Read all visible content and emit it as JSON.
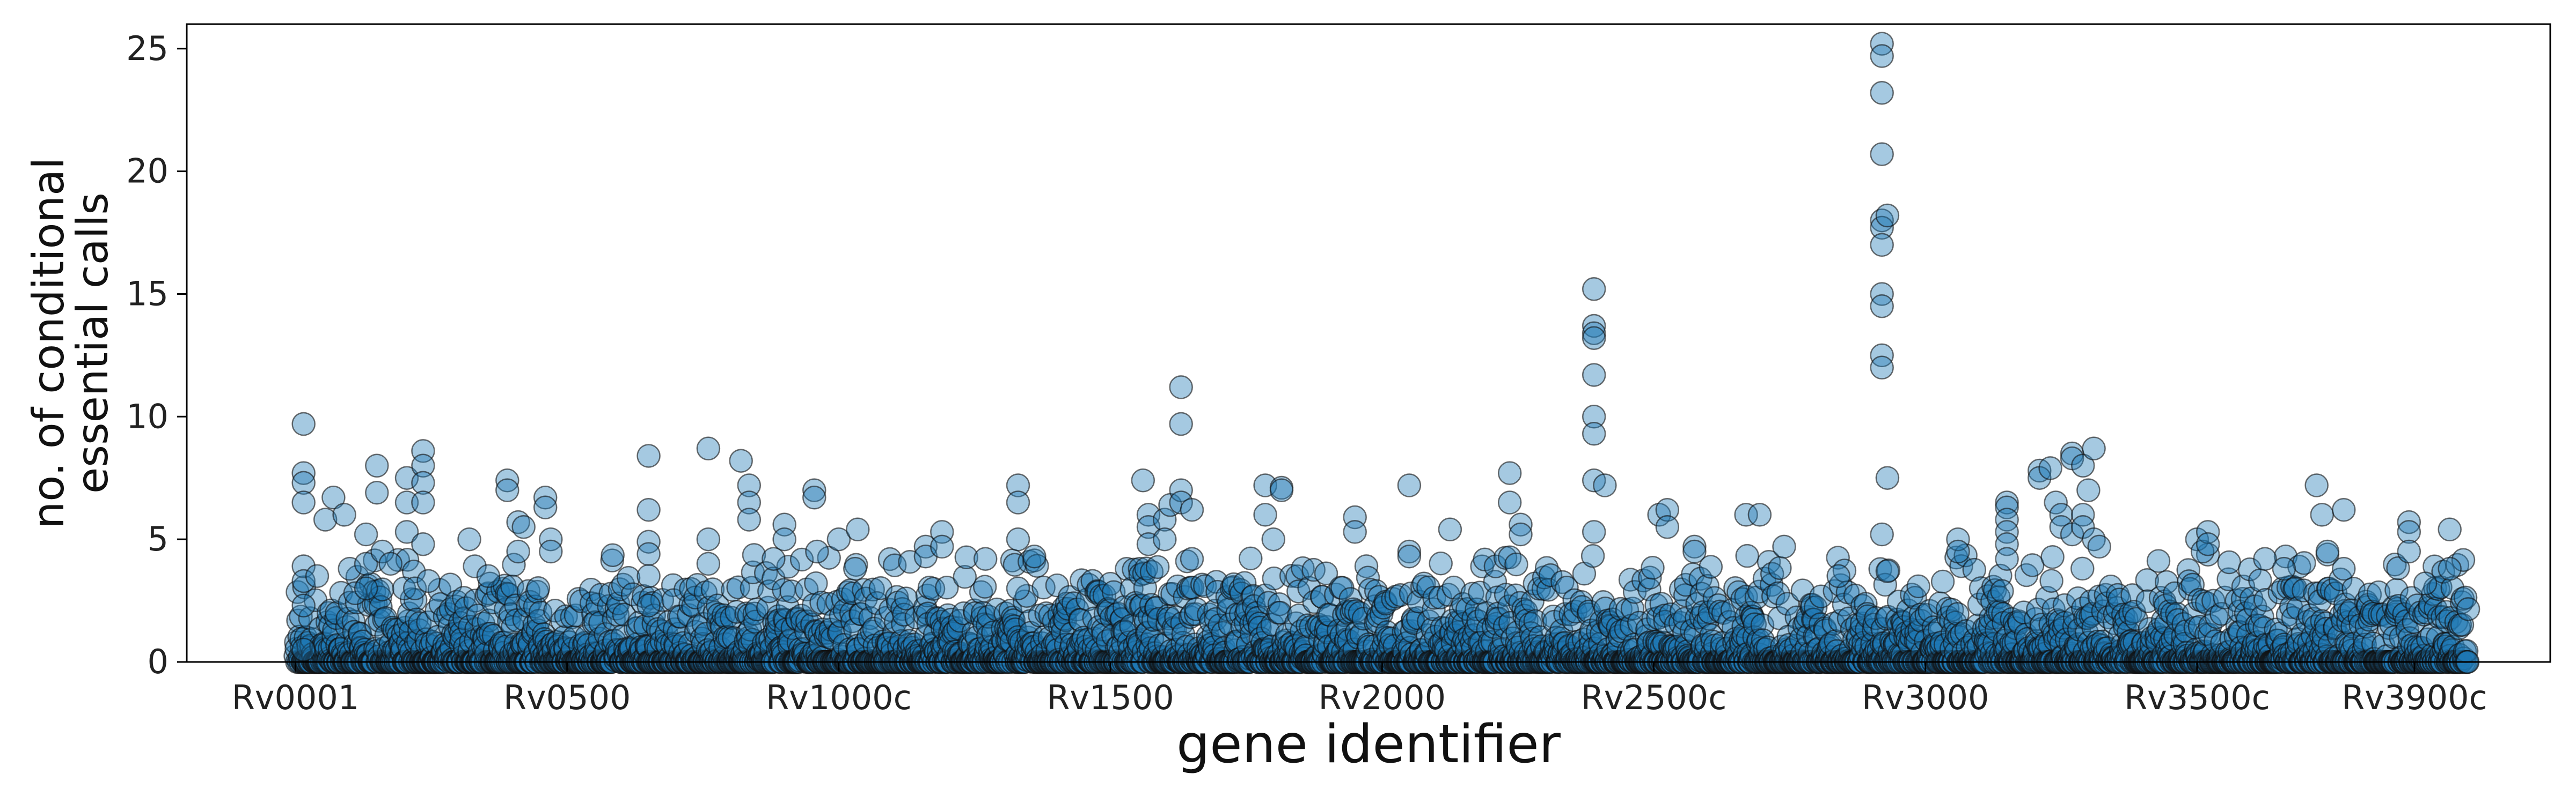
{
  "chart_data": {
    "type": "scatter",
    "title": "",
    "xlabel": "gene identifier",
    "ylabel_lines": [
      "no. of conditional",
      "essential calls"
    ],
    "x_tick_labels": [
      "Rv0001",
      "Rv0500",
      "Rv1000c",
      "Rv1500",
      "Rv2000",
      "Rv2500c",
      "Rv3000",
      "Rv3500c",
      "Rv3900c"
    ],
    "x_tick_positions": [
      0,
      500,
      1000,
      1500,
      2000,
      2500,
      3000,
      3500,
      3900
    ],
    "y_ticks": [
      0,
      5,
      10,
      15,
      20,
      25
    ],
    "xlim": [
      -200,
      4150
    ],
    "ylim": [
      0,
      26
    ],
    "grid": false,
    "n_genes": 4000,
    "series": [
      {
        "color": "#1f77b4",
        "edgecolor": "#111111",
        "alpha": 0.4,
        "highlighted_points": [
          [
            15,
            9.7
          ],
          [
            15,
            7.7
          ],
          [
            15,
            7.3
          ],
          [
            15,
            6.5
          ],
          [
            15,
            3.9
          ],
          [
            15,
            3.3
          ],
          [
            15,
            2.3
          ],
          [
            15,
            0.5
          ],
          [
            40,
            3.5
          ],
          [
            55,
            5.8
          ],
          [
            70,
            6.7
          ],
          [
            90,
            6.0
          ],
          [
            100,
            3.8
          ],
          [
            110,
            2.8
          ],
          [
            130,
            5.2
          ],
          [
            130,
            4.0
          ],
          [
            130,
            3.0
          ],
          [
            150,
            8.0
          ],
          [
            150,
            6.9
          ],
          [
            160,
            4.5
          ],
          [
            175,
            4.0
          ],
          [
            200,
            3.0
          ],
          [
            205,
            7.5
          ],
          [
            205,
            6.5
          ],
          [
            205,
            5.3
          ],
          [
            220,
            3.0
          ],
          [
            235,
            8.6
          ],
          [
            235,
            8.0
          ],
          [
            235,
            7.3
          ],
          [
            235,
            6.5
          ],
          [
            235,
            4.8
          ],
          [
            245,
            3.3
          ],
          [
            320,
            5.0
          ],
          [
            355,
            3.5
          ],
          [
            390,
            7.4
          ],
          [
            390,
            7.0
          ],
          [
            410,
            5.7
          ],
          [
            410,
            4.5
          ],
          [
            420,
            5.5
          ],
          [
            460,
            6.7
          ],
          [
            460,
            6.3
          ],
          [
            470,
            5.0
          ],
          [
            470,
            4.5
          ],
          [
            650,
            8.4
          ],
          [
            650,
            6.2
          ],
          [
            650,
            4.9
          ],
          [
            650,
            4.4
          ],
          [
            650,
            3.5
          ],
          [
            650,
            2.3
          ],
          [
            760,
            8.7
          ],
          [
            760,
            5.0
          ],
          [
            760,
            4.0
          ],
          [
            820,
            8.2
          ],
          [
            835,
            7.2
          ],
          [
            835,
            6.5
          ],
          [
            835,
            5.8
          ],
          [
            880,
            4.2
          ],
          [
            900,
            5.6
          ],
          [
            900,
            5.0
          ],
          [
            955,
            7.0
          ],
          [
            955,
            6.7
          ],
          [
            960,
            4.5
          ],
          [
            1000,
            5.0
          ],
          [
            1030,
            3.8
          ],
          [
            1035,
            5.4
          ],
          [
            1160,
            4.7
          ],
          [
            1160,
            4.3
          ],
          [
            1190,
            5.3
          ],
          [
            1190,
            4.7
          ],
          [
            1270,
            4.2
          ],
          [
            1330,
            7.2
          ],
          [
            1330,
            6.5
          ],
          [
            1330,
            5.0
          ],
          [
            1330,
            3.0
          ],
          [
            1360,
            4.3
          ],
          [
            1560,
            7.4
          ],
          [
            1570,
            6.0
          ],
          [
            1570,
            5.5
          ],
          [
            1570,
            4.8
          ],
          [
            1600,
            5.8
          ],
          [
            1600,
            5.0
          ],
          [
            1610,
            6.4
          ],
          [
            1630,
            11.2
          ],
          [
            1630,
            9.7
          ],
          [
            1630,
            7.0
          ],
          [
            1630,
            6.5
          ],
          [
            1650,
            6.2
          ],
          [
            1650,
            4.2
          ],
          [
            1785,
            7.2
          ],
          [
            1785,
            6.0
          ],
          [
            1800,
            5.0
          ],
          [
            1815,
            7.1
          ],
          [
            1815,
            7.0
          ],
          [
            1950,
            5.9
          ],
          [
            1950,
            5.3
          ],
          [
            2050,
            7.2
          ],
          [
            2050,
            4.5
          ],
          [
            2050,
            4.3
          ],
          [
            2125,
            5.4
          ],
          [
            2235,
            7.7
          ],
          [
            2235,
            6.5
          ],
          [
            2255,
            5.6
          ],
          [
            2255,
            5.2
          ],
          [
            2390,
            15.2
          ],
          [
            2390,
            13.7
          ],
          [
            2390,
            13.4
          ],
          [
            2390,
            13.2
          ],
          [
            2390,
            11.7
          ],
          [
            2390,
            10.0
          ],
          [
            2390,
            9.3
          ],
          [
            2390,
            7.4
          ],
          [
            2390,
            5.3
          ],
          [
            2410,
            7.2
          ],
          [
            2510,
            6.0
          ],
          [
            2525,
            6.2
          ],
          [
            2525,
            5.5
          ],
          [
            2575,
            4.7
          ],
          [
            2575,
            4.5
          ],
          [
            2670,
            6.0
          ],
          [
            2695,
            6.0
          ],
          [
            2740,
            4.7
          ],
          [
            2840,
            3.5
          ],
          [
            2920,
            25.2
          ],
          [
            2920,
            24.7
          ],
          [
            2920,
            23.2
          ],
          [
            2920,
            20.7
          ],
          [
            2920,
            18.0
          ],
          [
            2920,
            17.7
          ],
          [
            2920,
            17.0
          ],
          [
            2920,
            15.0
          ],
          [
            2920,
            14.5
          ],
          [
            2920,
            12.5
          ],
          [
            2920,
            12.0
          ],
          [
            2920,
            5.2
          ],
          [
            2930,
            18.2
          ],
          [
            2930,
            7.5
          ],
          [
            2930,
            3.7
          ],
          [
            3060,
            5.0
          ],
          [
            3060,
            4.5
          ],
          [
            3150,
            6.5
          ],
          [
            3150,
            6.3
          ],
          [
            3150,
            5.8
          ],
          [
            3150,
            5.3
          ],
          [
            3150,
            4.8
          ],
          [
            3150,
            4.2
          ],
          [
            3210,
            7.8
          ],
          [
            3210,
            7.5
          ],
          [
            3230,
            7.9
          ],
          [
            3240,
            6.5
          ],
          [
            3270,
            8.5
          ],
          [
            3270,
            8.3
          ],
          [
            3290,
            8.0
          ],
          [
            3300,
            7.0
          ],
          [
            3310,
            8.7
          ],
          [
            3250,
            6.0
          ],
          [
            3250,
            5.5
          ],
          [
            3270,
            5.2
          ],
          [
            3290,
            6.0
          ],
          [
            3290,
            5.5
          ],
          [
            3310,
            5.0
          ],
          [
            3320,
            4.7
          ],
          [
            3500,
            5.0
          ],
          [
            3510,
            4.5
          ],
          [
            3520,
            5.3
          ],
          [
            3520,
            4.8
          ],
          [
            3625,
            4.2
          ],
          [
            3660,
            3.8
          ],
          [
            3720,
            7.2
          ],
          [
            3730,
            6.0
          ],
          [
            3740,
            4.5
          ],
          [
            3770,
            6.2
          ],
          [
            3770,
            3.8
          ],
          [
            3890,
            5.7
          ],
          [
            3890,
            5.3
          ],
          [
            3890,
            4.5
          ],
          [
            3920,
            3.2
          ],
          [
            3965,
            5.4
          ],
          [
            3965,
            3.8
          ]
        ]
      }
    ]
  }
}
